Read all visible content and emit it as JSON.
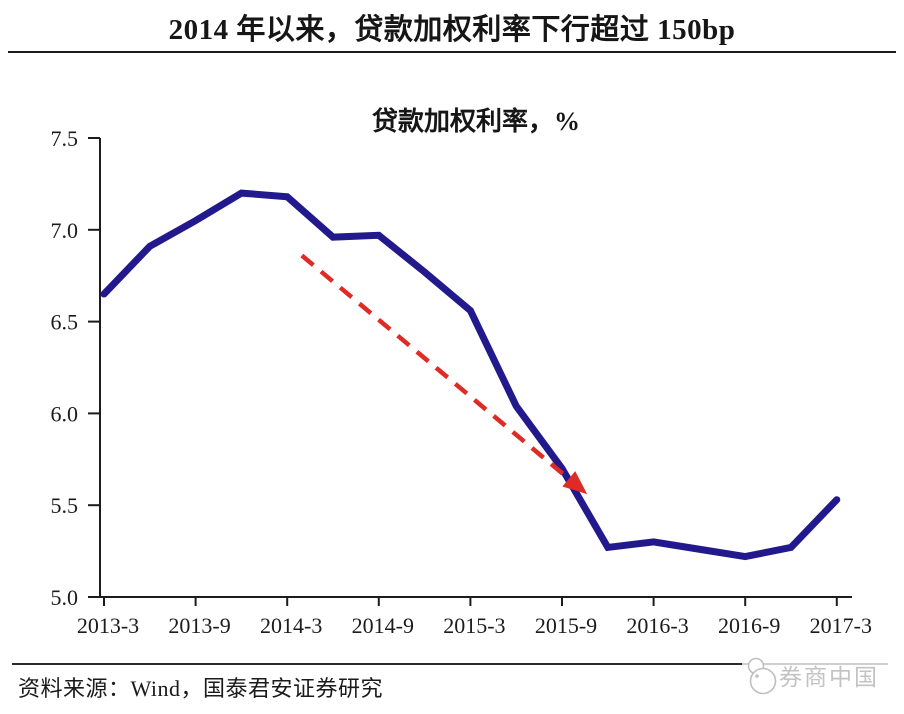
{
  "page": {
    "title": "2014 年以来，贷款加权利率下行超过 150bp",
    "source_note": "资料来源：Wind，国泰君安证券研究",
    "watermark_text": "券商中国",
    "watermark_color": "#c3c3c3",
    "axis_color": "#1c1c1c"
  },
  "chart_data": {
    "type": "line",
    "title": "贷款加权利率，%",
    "series_name": "贷款加权利率",
    "x": [
      "2013-3",
      "2013-6",
      "2013-9",
      "2013-12",
      "2014-3",
      "2014-6",
      "2014-9",
      "2014-12",
      "2015-3",
      "2015-6",
      "2015-9",
      "2015-12",
      "2016-3",
      "2016-6",
      "2016-9",
      "2016-12",
      "2017-3"
    ],
    "values": [
      6.65,
      6.91,
      7.05,
      7.2,
      7.18,
      6.96,
      6.97,
      6.77,
      6.56,
      6.04,
      5.7,
      5.27,
      5.3,
      5.26,
      5.22,
      5.27,
      5.53
    ],
    "x_tick_labels": [
      "2013-3",
      "2013-9",
      "2014-3",
      "2014-9",
      "2015-3",
      "2015-9",
      "2016-3",
      "2016-9",
      "2017-3"
    ],
    "y_ticks": [
      "5.0",
      "5.5",
      "6.0",
      "6.5",
      "7.0",
      "7.5"
    ],
    "ylim": [
      5.0,
      7.5
    ],
    "grid": false,
    "legend": "none",
    "line_color": "#221a8c",
    "annotation_arrow": {
      "color": "#e02a26",
      "style": "dashed",
      "from": {
        "xi": 4.32,
        "v": 6.86
      },
      "tip": {
        "xi": 10.55,
        "v": 5.56
      }
    }
  }
}
